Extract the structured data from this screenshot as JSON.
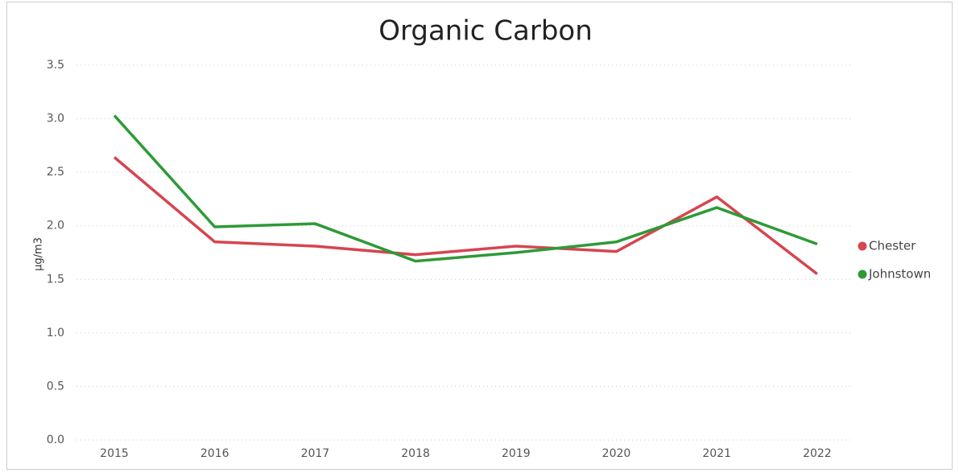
{
  "chart_data": {
    "type": "line",
    "title": "Organic Carbon",
    "y_label": "μg/m3",
    "categories": [
      "2015",
      "2016",
      "2017",
      "2018",
      "2019",
      "2020",
      "2021",
      "2022"
    ],
    "series": [
      {
        "name": "Chester",
        "color": "#d64550",
        "values": [
          2.64,
          1.85,
          1.81,
          1.73,
          1.81,
          1.76,
          2.27,
          1.55
        ]
      },
      {
        "name": "Johnstown",
        "color": "#2e9a36",
        "values": [
          3.03,
          1.99,
          2.02,
          1.67,
          1.75,
          1.85,
          2.17,
          1.83
        ]
      }
    ],
    "ylim": [
      0,
      3.5
    ],
    "yticks": [
      {
        "value": 0,
        "label": "0.0"
      },
      0.5,
      {
        "value": 1,
        "label": "1.0"
      },
      1.5,
      {
        "value": 2,
        "label": "2.0"
      },
      2.5,
      {
        "value": 3,
        "label": "3.0"
      },
      3.5
    ],
    "grid": true,
    "legend": "right"
  }
}
